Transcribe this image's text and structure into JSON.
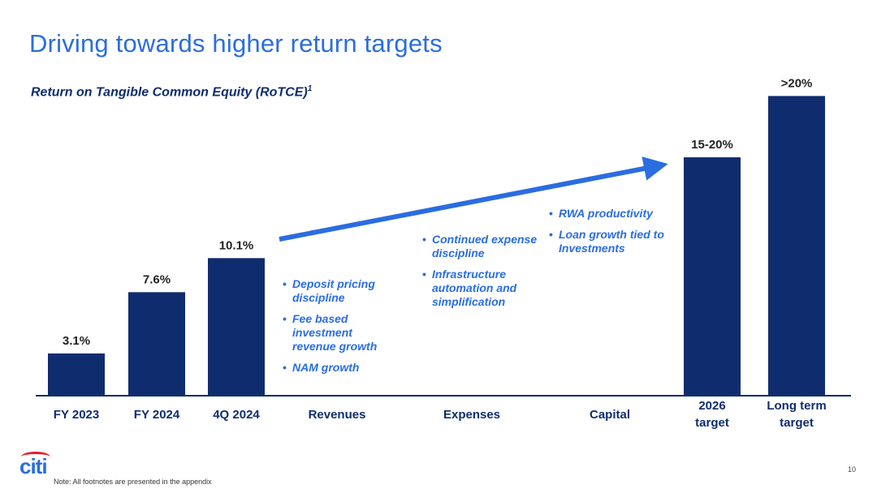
{
  "slide": {
    "title": "Driving towards higher return targets",
    "subtitle": "Return on Tangible Common Equity (RoTCE)",
    "subtitle_footnote": "1",
    "note": "Note:  All footnotes are presented in the appendix",
    "page_number": "10",
    "logo": "citi"
  },
  "chart_data": {
    "type": "bar",
    "categories": [
      "FY 2023",
      "FY 2024",
      "4Q 2024",
      "Revenues",
      "Expenses",
      "Capital",
      "2026 target",
      "Long term target"
    ],
    "values": [
      3.1,
      7.6,
      10.1,
      null,
      null,
      null,
      17.5,
      22
    ],
    "data_labels": [
      "3.1%",
      "7.6%",
      "10.1%",
      "",
      "",
      "",
      "15-20%",
      ">20%"
    ],
    "ylim": [
      0,
      25
    ],
    "bar_color": "#0f2d6e",
    "arrow_color": "#2a6de0",
    "drivers": [
      {
        "category": "Revenues",
        "items": [
          "Deposit pricing discipline",
          "Fee based investment revenue growth",
          "NAM growth"
        ]
      },
      {
        "category": "Expenses",
        "items": [
          "Continued expense discipline",
          "Infrastructure automation and simplification"
        ]
      },
      {
        "category": "Capital",
        "items": [
          "RWA productivity",
          "Loan growth tied to Investments"
        ]
      }
    ]
  }
}
